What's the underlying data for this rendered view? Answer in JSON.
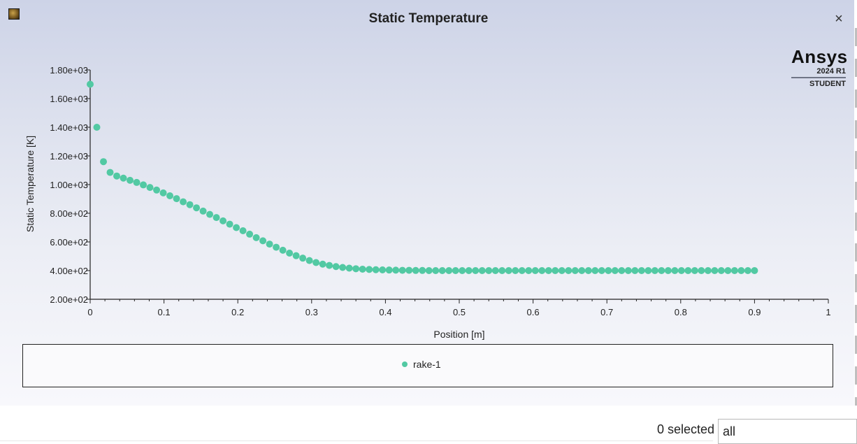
{
  "window": {
    "title": "Static Temperature",
    "close_label": "×",
    "app_icon": "fluent-app-icon",
    "brand": {
      "name": "Ansys",
      "version": "2024 R1",
      "edition": "STUDENT"
    }
  },
  "legend": {
    "entry": "rake-1"
  },
  "footer": {
    "selection_count": "0 selected",
    "filter_value": "all"
  },
  "colors": {
    "series": "#52c9a3",
    "axis": "#222222"
  },
  "chart_data": {
    "type": "scatter",
    "title": "Static Temperature",
    "xlabel": "Position [m]",
    "ylabel": "Static Temperature [K]",
    "xlim": [
      0,
      1
    ],
    "ylim": [
      200,
      1800
    ],
    "x_ticks": [
      0,
      0.1,
      0.2,
      0.3,
      0.4,
      0.5,
      0.6,
      0.7,
      0.8,
      0.9,
      1
    ],
    "x_tick_labels": [
      "0",
      "0.1",
      "0.2",
      "0.3",
      "0.4",
      "0.5",
      "0.6",
      "0.7",
      "0.8",
      "0.9",
      "1"
    ],
    "y_ticks": [
      200,
      400,
      600,
      800,
      1000,
      1200,
      1400,
      1600,
      1800
    ],
    "y_tick_labels": [
      "2.00e+02",
      "4.00e+02",
      "6.00e+02",
      "8.00e+02",
      "1.00e+03",
      "1.20e+03",
      "1.40e+03",
      "1.60e+03",
      "1.80e+03"
    ],
    "grid": false,
    "legend_position": "bottom",
    "series": [
      {
        "name": "rake-1",
        "color": "#52c9a3",
        "x": [
          0,
          0.009,
          0.018,
          0.027,
          0.036,
          0.045,
          0.054,
          0.063,
          0.072,
          0.081,
          0.09,
          0.099,
          0.108,
          0.117,
          0.126,
          0.135,
          0.144,
          0.153,
          0.162,
          0.171,
          0.18,
          0.189,
          0.198,
          0.207,
          0.216,
          0.225,
          0.234,
          0.243,
          0.252,
          0.261,
          0.27,
          0.279,
          0.288,
          0.297,
          0.306,
          0.315,
          0.324,
          0.333,
          0.342,
          0.351,
          0.36,
          0.369,
          0.378,
          0.387,
          0.396,
          0.405,
          0.414,
          0.423,
          0.432,
          0.441,
          0.45,
          0.459,
          0.468,
          0.477,
          0.486,
          0.495,
          0.504,
          0.513,
          0.522,
          0.531,
          0.54,
          0.549,
          0.558,
          0.567,
          0.576,
          0.585,
          0.594,
          0.603,
          0.612,
          0.621,
          0.63,
          0.639,
          0.648,
          0.657,
          0.666,
          0.675,
          0.684,
          0.693,
          0.702,
          0.711,
          0.72,
          0.729,
          0.738,
          0.747,
          0.756,
          0.765,
          0.774,
          0.783,
          0.792,
          0.801,
          0.81,
          0.819,
          0.828,
          0.837,
          0.846,
          0.855,
          0.864,
          0.873,
          0.882,
          0.891,
          0.9
        ],
        "values": [
          1700,
          1400,
          1160,
          1085,
          1060,
          1045,
          1030,
          1015,
          998,
          980,
          962,
          942,
          922,
          902,
          880,
          860,
          838,
          815,
          792,
          770,
          747,
          724,
          700,
          678,
          654,
          630,
          608,
          585,
          563,
          542,
          522,
          504,
          487,
          470,
          456,
          445,
          436,
          428,
          422,
          417,
          413,
          410,
          408,
          406,
          405,
          404,
          403,
          402,
          402,
          401,
          401,
          400,
          400,
          400,
          400,
          400,
          400,
          400,
          400,
          400,
          400,
          400,
          400,
          400,
          400,
          400,
          400,
          400,
          400,
          400,
          400,
          400,
          400,
          400,
          400,
          400,
          400,
          400,
          400,
          400,
          400,
          400,
          400,
          400,
          400,
          400,
          400,
          400,
          400,
          400,
          400,
          400,
          400,
          400,
          400,
          400,
          400,
          400,
          400,
          400,
          400
        ]
      }
    ]
  }
}
